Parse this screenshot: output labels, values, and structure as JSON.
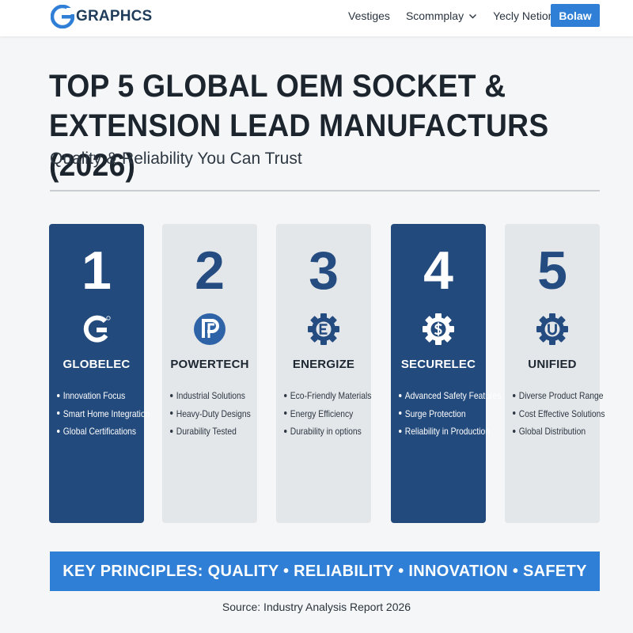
{
  "nav": {
    "logo_text": "GRAPHCS",
    "logo_icon": "g-logo-icon",
    "links": [
      {
        "label": "Vestiges",
        "has_dropdown": false
      },
      {
        "label": "Scommplay",
        "has_dropdown": true
      },
      {
        "label": "Yecly Netior",
        "has_dropdown": true
      }
    ],
    "cta_label": "Bolaw"
  },
  "header": {
    "title": "TOP 5 GLOBAL OEM SOCKET & EXTENSION LEAD MANUFACTURS (2026)",
    "subtitle": "Quality & Reliability You Can Trust"
  },
  "cards": [
    {
      "rank": "1",
      "name": "GLOBELEC",
      "icon": "g-brand-icon",
      "style": "dark",
      "features": [
        "Innovation Focus",
        "Smart Home Integration",
        "Global Certifications"
      ]
    },
    {
      "rank": "2",
      "name": "POWERTECH",
      "icon": "p-brand-icon",
      "style": "light",
      "features": [
        "Industrial Solutions",
        "Heavy-Duty Designs",
        "Durability Tested"
      ]
    },
    {
      "rank": "3",
      "name": "ENERGIZE",
      "icon": "e-gear-icon",
      "style": "light",
      "features": [
        "Eco-Friendly Materials",
        "Energy Efficiency",
        "Durability in options"
      ]
    },
    {
      "rank": "4",
      "name": "SECURELEC",
      "icon": "dollar-gear-icon",
      "style": "dark",
      "features": [
        "Advanced Safety Features",
        "Surge Protection",
        "Reliability in Production"
      ]
    },
    {
      "rank": "5",
      "name": "UNIFIED",
      "icon": "u-gear-icon",
      "style": "light",
      "features": [
        "Diverse Product Range",
        "Cost Effective Solutions",
        "Global Distribution"
      ]
    }
  ],
  "banner": {
    "text": "KEY PRINCIPLES: QUALITY • RELIABILITY • INNOVATION • SAFETY"
  },
  "source": "Source: Industry Analysis Report 2026",
  "colors": {
    "accent": "#2f7fd6",
    "dark_card": "#234a7c",
    "light_card": "#e4e7ea",
    "rank_light": "#244c80"
  }
}
